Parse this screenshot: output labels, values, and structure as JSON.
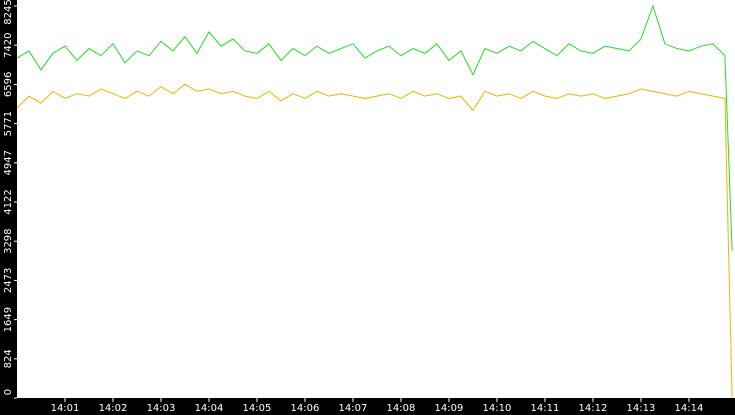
{
  "chart_data": {
    "type": "line",
    "x": [
      840,
      840.25,
      840.5,
      840.75,
      841,
      841.25,
      841.5,
      841.75,
      842,
      842.25,
      842.5,
      842.75,
      843,
      843.25,
      843.5,
      843.75,
      844,
      844.25,
      844.5,
      844.75,
      845,
      845.25,
      845.5,
      845.75,
      846,
      846.25,
      846.5,
      846.75,
      847,
      847.25,
      847.5,
      847.75,
      848,
      848.25,
      848.5,
      848.75,
      849,
      849.25,
      849.5,
      849.75,
      850,
      850.25,
      850.5,
      850.75,
      851,
      851.25,
      851.5,
      851.75,
      852,
      852.25,
      852.5,
      852.75,
      853,
      853.25,
      853.5,
      853.75,
      854,
      854.25,
      854.5,
      854.75,
      854.9
    ],
    "series": [
      {
        "name": "green",
        "color": "#22dd22",
        "values": [
          7150,
          7300,
          6900,
          7250,
          7400,
          7100,
          7350,
          7200,
          7450,
          7050,
          7300,
          7200,
          7500,
          7300,
          7600,
          7250,
          7700,
          7400,
          7550,
          7300,
          7250,
          7450,
          7100,
          7350,
          7200,
          7400,
          7250,
          7350,
          7450,
          7150,
          7300,
          7400,
          7200,
          7350,
          7250,
          7450,
          7100,
          7300,
          6800,
          7350,
          7250,
          7400,
          7300,
          7500,
          7350,
          7200,
          7450,
          7300,
          7250,
          7400,
          7350,
          7300,
          7550,
          8245,
          7450,
          7350,
          7300,
          7400,
          7450,
          7200,
          3100
        ]
      },
      {
        "name": "orange",
        "color": "#f0b400",
        "values": [
          6100,
          6350,
          6200,
          6450,
          6300,
          6400,
          6350,
          6500,
          6400,
          6300,
          6450,
          6350,
          6550,
          6400,
          6600,
          6450,
          6500,
          6400,
          6450,
          6350,
          6300,
          6450,
          6250,
          6400,
          6300,
          6450,
          6350,
          6400,
          6350,
          6300,
          6350,
          6400,
          6300,
          6450,
          6350,
          6400,
          6300,
          6350,
          6050,
          6450,
          6350,
          6400,
          6300,
          6450,
          6350,
          6300,
          6400,
          6350,
          6400,
          6300,
          6350,
          6400,
          6500,
          6450,
          6400,
          6350,
          6450,
          6400,
          6350,
          6300,
          0
        ]
      }
    ],
    "xlim": [
      840,
      854.96
    ],
    "xticks": [
      {
        "value": 841,
        "label": "14:01"
      },
      {
        "value": 842,
        "label": "14:02"
      },
      {
        "value": 843,
        "label": "14:03"
      },
      {
        "value": 844,
        "label": "14:04"
      },
      {
        "value": 845,
        "label": "14:05"
      },
      {
        "value": 846,
        "label": "14:06"
      },
      {
        "value": 847,
        "label": "14:07"
      },
      {
        "value": 848,
        "label": "14:08"
      },
      {
        "value": 849,
        "label": "14:09"
      },
      {
        "value": 850,
        "label": "14:10"
      },
      {
        "value": 851,
        "label": "14:11"
      },
      {
        "value": 852,
        "label": "14:12"
      },
      {
        "value": 853,
        "label": "14:13"
      },
      {
        "value": 854,
        "label": "14:14"
      }
    ],
    "ylim": [
      0,
      8245
    ],
    "yticks": [
      0,
      824,
      1649,
      2473,
      3298,
      4122,
      4947,
      5771,
      6596,
      7420,
      8245
    ]
  }
}
